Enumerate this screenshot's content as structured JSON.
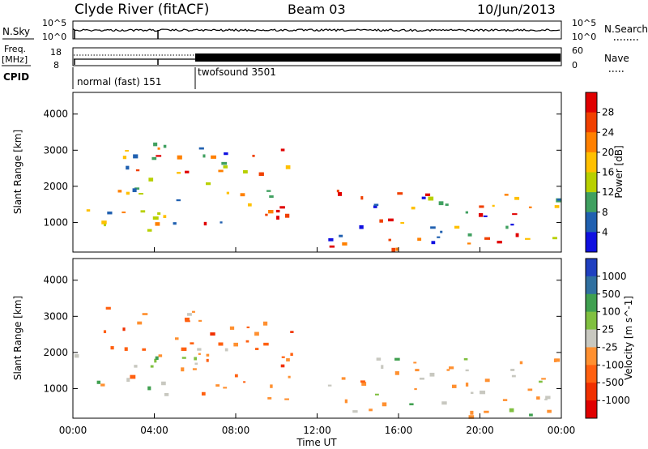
{
  "header": {
    "station": "Clyde River (fitACF)",
    "beam": "Beam 03",
    "date": "10/Jun/2013"
  },
  "top_strips": {
    "nsky_label": "N.Sky",
    "nsearch_label": "N.Search",
    "nsky_ticks": [
      "10^5",
      "10^0"
    ],
    "nsearch_ticks": [
      "10^5",
      "10^0"
    ],
    "freq_label_1": "Freq.",
    "freq_label_2": "[MHz]",
    "freq_ticks": [
      "18",
      "8"
    ],
    "nave_label": "Nave",
    "nave_ticks": [
      "60",
      "0"
    ],
    "cpid_label": "CPID",
    "cpid_segments": [
      {
        "label": "normal (fast) 151",
        "start_hour": 0,
        "end_hour": 6
      },
      {
        "label": "twofsound 3501",
        "start_hour": 6,
        "end_hour": 24
      }
    ]
  },
  "chart_data": [
    {
      "type": "heatmap",
      "name": "power",
      "ylabel": "Slant Range [km]",
      "ylim": [
        180,
        4600
      ],
      "yticks": [
        1000,
        2000,
        3000,
        4000
      ],
      "xlim": [
        0,
        24
      ],
      "colorbar": {
        "label": "Power [dB]",
        "ticks": [
          "28",
          "24",
          "20",
          "16",
          "12",
          "8",
          "4"
        ],
        "colors": [
          "#e00000",
          "#f04000",
          "#ff8000",
          "#ffc000",
          "#b8d000",
          "#40a060",
          "#2060b0",
          "#1010e0"
        ]
      },
      "scatter_regions": [
        {
          "t0": 0.0,
          "t1": 6.0,
          "r0": 800,
          "r1": 2000,
          "level": "mid"
        },
        {
          "t0": 1.5,
          "t1": 6.0,
          "r0": 2000,
          "r1": 3250,
          "level": "mixed"
        },
        {
          "t0": 6.0,
          "t1": 10.5,
          "r0": 700,
          "r1": 3100,
          "level": "mixed"
        },
        {
          "t0": 12.5,
          "t1": 24.0,
          "r0": 400,
          "r1": 2000,
          "level": "mixed"
        },
        {
          "t0": 12.5,
          "t1": 16.5,
          "r0": 250,
          "r1": 600,
          "level": "high"
        }
      ]
    },
    {
      "type": "heatmap",
      "name": "velocity",
      "ylabel": "Slant Range [km]",
      "xlabel": "Time UT",
      "ylim": [
        180,
        4600
      ],
      "yticks": [
        1000,
        2000,
        3000,
        4000
      ],
      "xlim": [
        0,
        24
      ],
      "xticks": [
        "00:00",
        "04:00",
        "08:00",
        "12:00",
        "16:00",
        "20:00",
        "00:00"
      ],
      "colorbar": {
        "label": "Velocity [m s^-1]",
        "ticks": [
          "1000",
          "500",
          "100",
          "25",
          "-25",
          "-100",
          "-500",
          "-1000"
        ],
        "colors": [
          "#2040c0",
          "#3070a0",
          "#40a050",
          "#80c040",
          "#c8c8c0",
          "#ff9030",
          "#ff6010",
          "#f03000",
          "#e00000"
        ]
      },
      "scatter_regions": [
        {
          "t0": 0.0,
          "t1": 6.0,
          "r0": 800,
          "r1": 2000,
          "level": "mixed"
        },
        {
          "t0": 1.5,
          "t1": 6.0,
          "r0": 2000,
          "r1": 3300,
          "level": "negative"
        },
        {
          "t0": 6.0,
          "t1": 11.0,
          "r0": 700,
          "r1": 3100,
          "level": "negative"
        },
        {
          "t0": 12.5,
          "t1": 24.0,
          "r0": 250,
          "r1": 1900,
          "level": "mixed"
        }
      ]
    }
  ]
}
